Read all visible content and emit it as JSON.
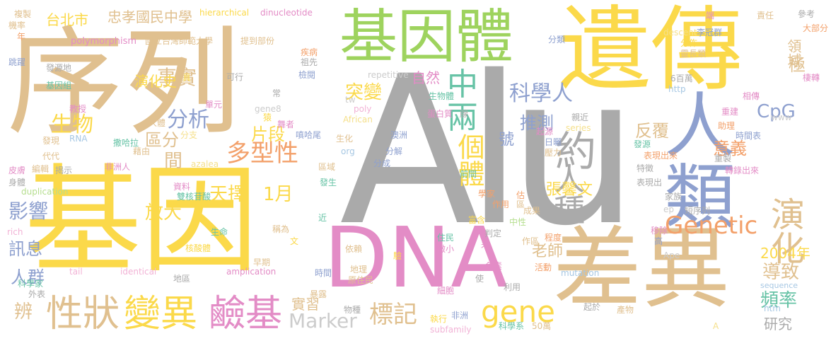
{
  "palette": {
    "tan": "#e0c08f",
    "yellow": "#fbd94a",
    "green": "#9ed35e",
    "pink": "#e38cc6",
    "gray": "#aaaaaa",
    "blue": "#8ea0cf",
    "orange": "#f3a06a",
    "teal": "#67c3a6",
    "lilac": "#c7b3dc",
    "ltblue": "#a6c7e3",
    "ltgreen": "#b5de8e",
    "ltpink": "#f2b3d6",
    "ltgray": "#cccccc",
    "ltyellow": "#f5e08c"
  },
  "words": [
    {
      "text": "Alu",
      "color": "gray"
    },
    {
      "text": "序列",
      "color": "tan"
    },
    {
      "text": "基因",
      "color": "yellow"
    },
    {
      "text": "遺傳",
      "color": "yellow"
    },
    {
      "text": "基因體",
      "color": "green"
    },
    {
      "text": "DNA",
      "color": "pink"
    },
    {
      "text": "差異",
      "color": "tan"
    },
    {
      "text": "人類",
      "color": "blue"
    },
    {
      "text": "演化",
      "color": "tan"
    },
    {
      "text": "性狀",
      "color": "tan"
    },
    {
      "text": "變異",
      "color": "yellow"
    },
    {
      "text": "鹼基",
      "color": "pink"
    },
    {
      "text": "人種",
      "color": "gray"
    },
    {
      "text": "約",
      "color": "gray"
    },
    {
      "text": "中",
      "color": "teal"
    },
    {
      "text": "兩",
      "color": "teal"
    },
    {
      "text": "gene",
      "color": "yellow"
    },
    {
      "text": "Genetic",
      "color": "orange"
    },
    {
      "text": "標記",
      "color": "tan"
    },
    {
      "text": "Marker",
      "color": "ltgray"
    },
    {
      "text": "多型性",
      "color": "orange"
    },
    {
      "text": "個體",
      "color": "yellow"
    },
    {
      "text": "科學人",
      "color": "blue"
    },
    {
      "text": "事實",
      "color": "tan"
    },
    {
      "text": "生物",
      "color": "yellow"
    },
    {
      "text": "分析",
      "color": "blue"
    },
    {
      "text": "影響",
      "color": "blue"
    },
    {
      "text": "放大",
      "color": "yellow"
    },
    {
      "text": "天擇",
      "color": "yellow"
    },
    {
      "text": "1月",
      "color": "yellow"
    },
    {
      "text": "突變",
      "color": "yellow"
    },
    {
      "text": "推測",
      "color": "blue"
    },
    {
      "text": "片段",
      "color": "yellow"
    },
    {
      "text": "區分",
      "color": "tan"
    },
    {
      "text": "間",
      "color": "tan"
    },
    {
      "text": "反覆",
      "color": "tan"
    },
    {
      "text": "意義",
      "color": "orange"
    },
    {
      "text": "CpG",
      "color": "blue"
    },
    {
      "text": "2004年",
      "color": "yellow"
    },
    {
      "text": "導致",
      "color": "tan"
    },
    {
      "text": "頻率",
      "color": "teal"
    },
    {
      "text": "研究",
      "color": "gray"
    },
    {
      "text": "張馨文",
      "color": "yellow"
    },
    {
      "text": "老師",
      "color": "tan"
    },
    {
      "text": "訊息",
      "color": "blue"
    },
    {
      "text": "人群",
      "color": "blue"
    },
    {
      "text": "辨",
      "color": "tan"
    },
    {
      "text": "實習",
      "color": "tan"
    },
    {
      "text": "演化史",
      "color": "yellow"
    },
    {
      "text": "台北市",
      "color": "yellow"
    },
    {
      "text": "忠孝國民中學",
      "color": "tan"
    },
    {
      "text": "自然",
      "color": "pink"
    },
    {
      "text": "極",
      "color": "tan"
    },
    {
      "text": "領域",
      "color": "tan"
    },
    {
      "text": "號",
      "color": "blue"
    },
    {
      "text": "國立台灣師範大學",
      "color": "tan"
    },
    {
      "text": "polymorphism",
      "color": "pink"
    },
    {
      "text": "hierarchical",
      "color": "yellow"
    },
    {
      "text": "dinucleotide",
      "color": "pink"
    },
    {
      "text": "提到部份",
      "color": "tan"
    },
    {
      "text": "repetitive",
      "color": "ltgray"
    },
    {
      "text": "duplication",
      "color": "ltgreen"
    },
    {
      "text": "amplication",
      "color": "pink"
    },
    {
      "text": "identical",
      "color": "ltpink"
    },
    {
      "text": "subfamily",
      "color": "ltpink"
    },
    {
      "text": "African",
      "color": "ltyellow"
    },
    {
      "text": "descent",
      "color": "ltyellow"
    },
    {
      "text": "mutation",
      "color": "ltblue"
    },
    {
      "text": "sequence",
      "color": "ltblue"
    },
    {
      "text": "series",
      "color": "ltyellow"
    },
    {
      "text": "azalea",
      "color": "ltyellow"
    },
    {
      "text": "gene8",
      "color": "ltgray"
    },
    {
      "text": "poly",
      "color": "ltpink"
    },
    {
      "text": "tw",
      "color": "ltgray"
    },
    {
      "text": "org",
      "color": "ltblue"
    },
    {
      "text": "RNA",
      "color": "ltblue"
    },
    {
      "text": "www",
      "color": "ltgray"
    },
    {
      "text": "http",
      "color": "ltblue"
    },
    {
      "text": "htm",
      "color": "ltblue"
    },
    {
      "text": "rich",
      "color": "ltpink"
    },
    {
      "text": "tail",
      "color": "ltpink"
    },
    {
      "text": "ep",
      "color": "ltgray"
    },
    {
      "text": "Ape",
      "color": "ltgray"
    },
    {
      "text": "A",
      "color": "ltyellow"
    },
    {
      "text": "複製",
      "color": "tan"
    },
    {
      "text": "機率",
      "color": "tan"
    },
    {
      "text": "年",
      "color": "orange"
    },
    {
      "text": "跳躍",
      "color": "blue"
    },
    {
      "text": "發源地",
      "color": "gray"
    },
    {
      "text": "基因組",
      "color": "teal"
    },
    {
      "text": "教授",
      "color": "pink"
    },
    {
      "text": "發現",
      "color": "tan"
    },
    {
      "text": "代代",
      "color": "tan"
    },
    {
      "text": "皮膚",
      "color": "pink"
    },
    {
      "text": "身體",
      "color": "gray"
    },
    {
      "text": "外表",
      "color": "gray"
    },
    {
      "text": "科學家",
      "color": "teal"
    },
    {
      "text": "編輯",
      "color": "tan"
    },
    {
      "text": "揭示",
      "color": "gray"
    },
    {
      "text": "非洲人",
      "color": "pink"
    },
    {
      "text": "撒哈拉",
      "color": "teal"
    },
    {
      "text": "藉由",
      "color": "tan"
    },
    {
      "text": "分支",
      "color": "ltyellow"
    },
    {
      "text": "人體",
      "color": "tan"
    },
    {
      "text": "單元",
      "color": "pink"
    },
    {
      "text": "可行",
      "color": "gray"
    },
    {
      "text": "常",
      "color": "gray"
    },
    {
      "text": "具",
      "color": "yellow"
    },
    {
      "text": "猿",
      "color": "yellow"
    },
    {
      "text": "舞者",
      "color": "pink"
    },
    {
      "text": "嗔哈尾",
      "color": "blue"
    },
    {
      "text": "生化",
      "color": "tan"
    },
    {
      "text": "區域",
      "color": "tan"
    },
    {
      "text": "發生",
      "color": "teal"
    },
    {
      "text": "疾病",
      "color": "orange"
    },
    {
      "text": "祖先",
      "color": "gray"
    },
    {
      "text": "檢閱",
      "color": "blue"
    },
    {
      "text": "分類",
      "color": "blue"
    },
    {
      "text": "生命",
      "color": "teal"
    },
    {
      "text": "稱為",
      "color": "tan"
    },
    {
      "text": "文",
      "color": "yellow"
    },
    {
      "text": "近",
      "color": "teal"
    },
    {
      "text": "雙核苷酸",
      "color": "teal"
    },
    {
      "text": "資料",
      "color": "pink"
    },
    {
      "text": "核酸體",
      "color": "yellow"
    },
    {
      "text": "早期",
      "color": "tan"
    },
    {
      "text": "時間",
      "color": "blue"
    },
    {
      "text": "地區",
      "color": "gray"
    },
    {
      "text": "暴露",
      "color": "tan"
    },
    {
      "text": "物種",
      "color": "gray"
    },
    {
      "text": "地理",
      "color": "tan"
    },
    {
      "text": "原住民",
      "color": "tan"
    },
    {
      "text": "依賴",
      "color": "tan"
    },
    {
      "text": "驗",
      "color": "yellow"
    },
    {
      "text": "住民",
      "color": "teal"
    },
    {
      "text": "微小",
      "color": "pink"
    },
    {
      "text": "未",
      "color": "pink"
    },
    {
      "text": "細胞",
      "color": "pink"
    },
    {
      "text": "執行",
      "color": "yellow"
    },
    {
      "text": "非洲",
      "color": "blue"
    },
    {
      "text": "科學系",
      "color": "teal"
    },
    {
      "text": "50萬",
      "color": "tan"
    },
    {
      "text": "起於",
      "color": "gray"
    },
    {
      "text": "產物",
      "color": "tan"
    },
    {
      "text": "利用",
      "color": "gray"
    },
    {
      "text": "使",
      "color": "gray"
    },
    {
      "text": "色素",
      "color": "pink"
    },
    {
      "text": "活動",
      "color": "orange"
    },
    {
      "text": "富含",
      "color": "yellow"
    },
    {
      "text": "判定",
      "color": "gray"
    },
    {
      "text": "中性",
      "color": "ltgreen"
    },
    {
      "text": "作區",
      "color": "tan"
    },
    {
      "text": "程度",
      "color": "orange"
    },
    {
      "text": "高",
      "color": "blue"
    },
    {
      "text": "移除",
      "color": "pink"
    },
    {
      "text": "學家",
      "color": "orange"
    },
    {
      "text": "作用",
      "color": "orange"
    },
    {
      "text": "估",
      "color": "orange"
    },
    {
      "text": "區",
      "color": "tan"
    },
    {
      "text": "成果",
      "color": "tan"
    },
    {
      "text": "前間",
      "color": "teal"
    },
    {
      "text": "腺",
      "color": "gray"
    },
    {
      "text": "蛋白質",
      "color": "pink"
    },
    {
      "text": "澳洲",
      "color": "blue"
    },
    {
      "text": "分解",
      "color": "blue"
    },
    {
      "text": "分成",
      "color": "blue"
    },
    {
      "text": "生物體",
      "color": "teal"
    },
    {
      "text": "起源",
      "color": "pink"
    },
    {
      "text": "日曬",
      "color": "blue"
    },
    {
      "text": "壓力",
      "color": "tan"
    },
    {
      "text": "親近",
      "color": "gray"
    },
    {
      "text": "發源",
      "color": "teal"
    },
    {
      "text": "表現出來",
      "color": "orange"
    },
    {
      "text": "特徵",
      "color": "gray"
    },
    {
      "text": "表現出",
      "color": "gray"
    },
    {
      "text": "家族",
      "color": "gray"
    },
    {
      "text": "短序列",
      "color": "gray"
    },
    {
      "text": "助理",
      "color": "orange"
    },
    {
      "text": "時間表",
      "color": "blue"
    },
    {
      "text": "相傳",
      "color": "pink"
    },
    {
      "text": "重建",
      "color": "pink"
    },
    {
      "text": "重製",
      "color": "gray"
    },
    {
      "text": "轉錄出來",
      "color": "pink"
    },
    {
      "text": "6百萬",
      "color": "gray"
    },
    {
      "text": "靈長類",
      "color": "tan"
    },
    {
      "text": "李冠群",
      "color": "blue"
    },
    {
      "text": "分佈",
      "color": "yellow"
    },
    {
      "text": "端",
      "color": "pink"
    },
    {
      "text": "責任",
      "color": "tan"
    },
    {
      "text": "參考",
      "color": "gray"
    },
    {
      "text": "大部分",
      "color": "orange"
    },
    {
      "text": "棲轉",
      "color": "pink"
    },
    {
      "text": "世界",
      "color": "pink"
    }
  ]
}
